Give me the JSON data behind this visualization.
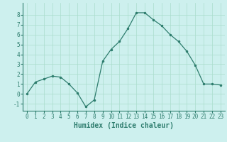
{
  "x": [
    0,
    1,
    2,
    3,
    4,
    5,
    6,
    7,
    8,
    9,
    10,
    11,
    12,
    13,
    14,
    15,
    16,
    17,
    18,
    19,
    20,
    21,
    22,
    23
  ],
  "y": [
    0,
    1.2,
    1.5,
    1.8,
    1.7,
    1.0,
    0.1,
    -1.3,
    -0.6,
    3.3,
    4.5,
    5.3,
    6.6,
    8.2,
    8.2,
    7.5,
    6.9,
    6.0,
    5.3,
    4.3,
    2.9,
    1.0,
    1.0,
    0.9
  ],
  "line_color": "#2e7d6e",
  "marker": ".",
  "marker_size": 3,
  "background_color": "#cdf0ee",
  "grid_color": "#aaddcc",
  "xlabel": "Humidex (Indice chaleur)",
  "xlim": [
    -0.5,
    23.5
  ],
  "ylim": [
    -1.7,
    9.2
  ],
  "yticks": [
    -1,
    0,
    1,
    2,
    3,
    4,
    5,
    6,
    7,
    8
  ],
  "xticks": [
    0,
    1,
    2,
    3,
    4,
    5,
    6,
    7,
    8,
    9,
    10,
    11,
    12,
    13,
    14,
    15,
    16,
    17,
    18,
    19,
    20,
    21,
    22,
    23
  ],
  "tick_fontsize": 5.5,
  "xlabel_fontsize": 7.0
}
